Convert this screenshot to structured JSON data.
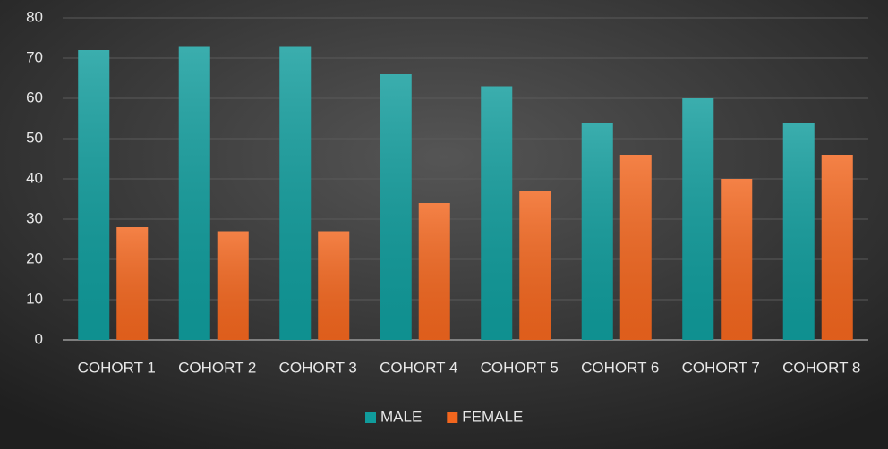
{
  "chart_data": {
    "type": "bar",
    "categories": [
      "COHORT 1",
      "COHORT 2",
      "COHORT 3",
      "COHORT 4",
      "COHORT 5",
      "COHORT 6",
      "COHORT 7",
      "COHORT 8"
    ],
    "series": [
      {
        "name": "MALE",
        "color": "#109c9c",
        "values": [
          72,
          73,
          73,
          66,
          63,
          54,
          60,
          54
        ]
      },
      {
        "name": "FEMALE",
        "color": "#f2661e",
        "values": [
          28,
          27,
          27,
          34,
          37,
          46,
          40,
          46
        ]
      }
    ],
    "ylim": [
      0,
      80
    ],
    "yticks": [
      0,
      10,
      20,
      30,
      40,
      50,
      60,
      70,
      80
    ],
    "grid": true,
    "legend": "bottom"
  }
}
